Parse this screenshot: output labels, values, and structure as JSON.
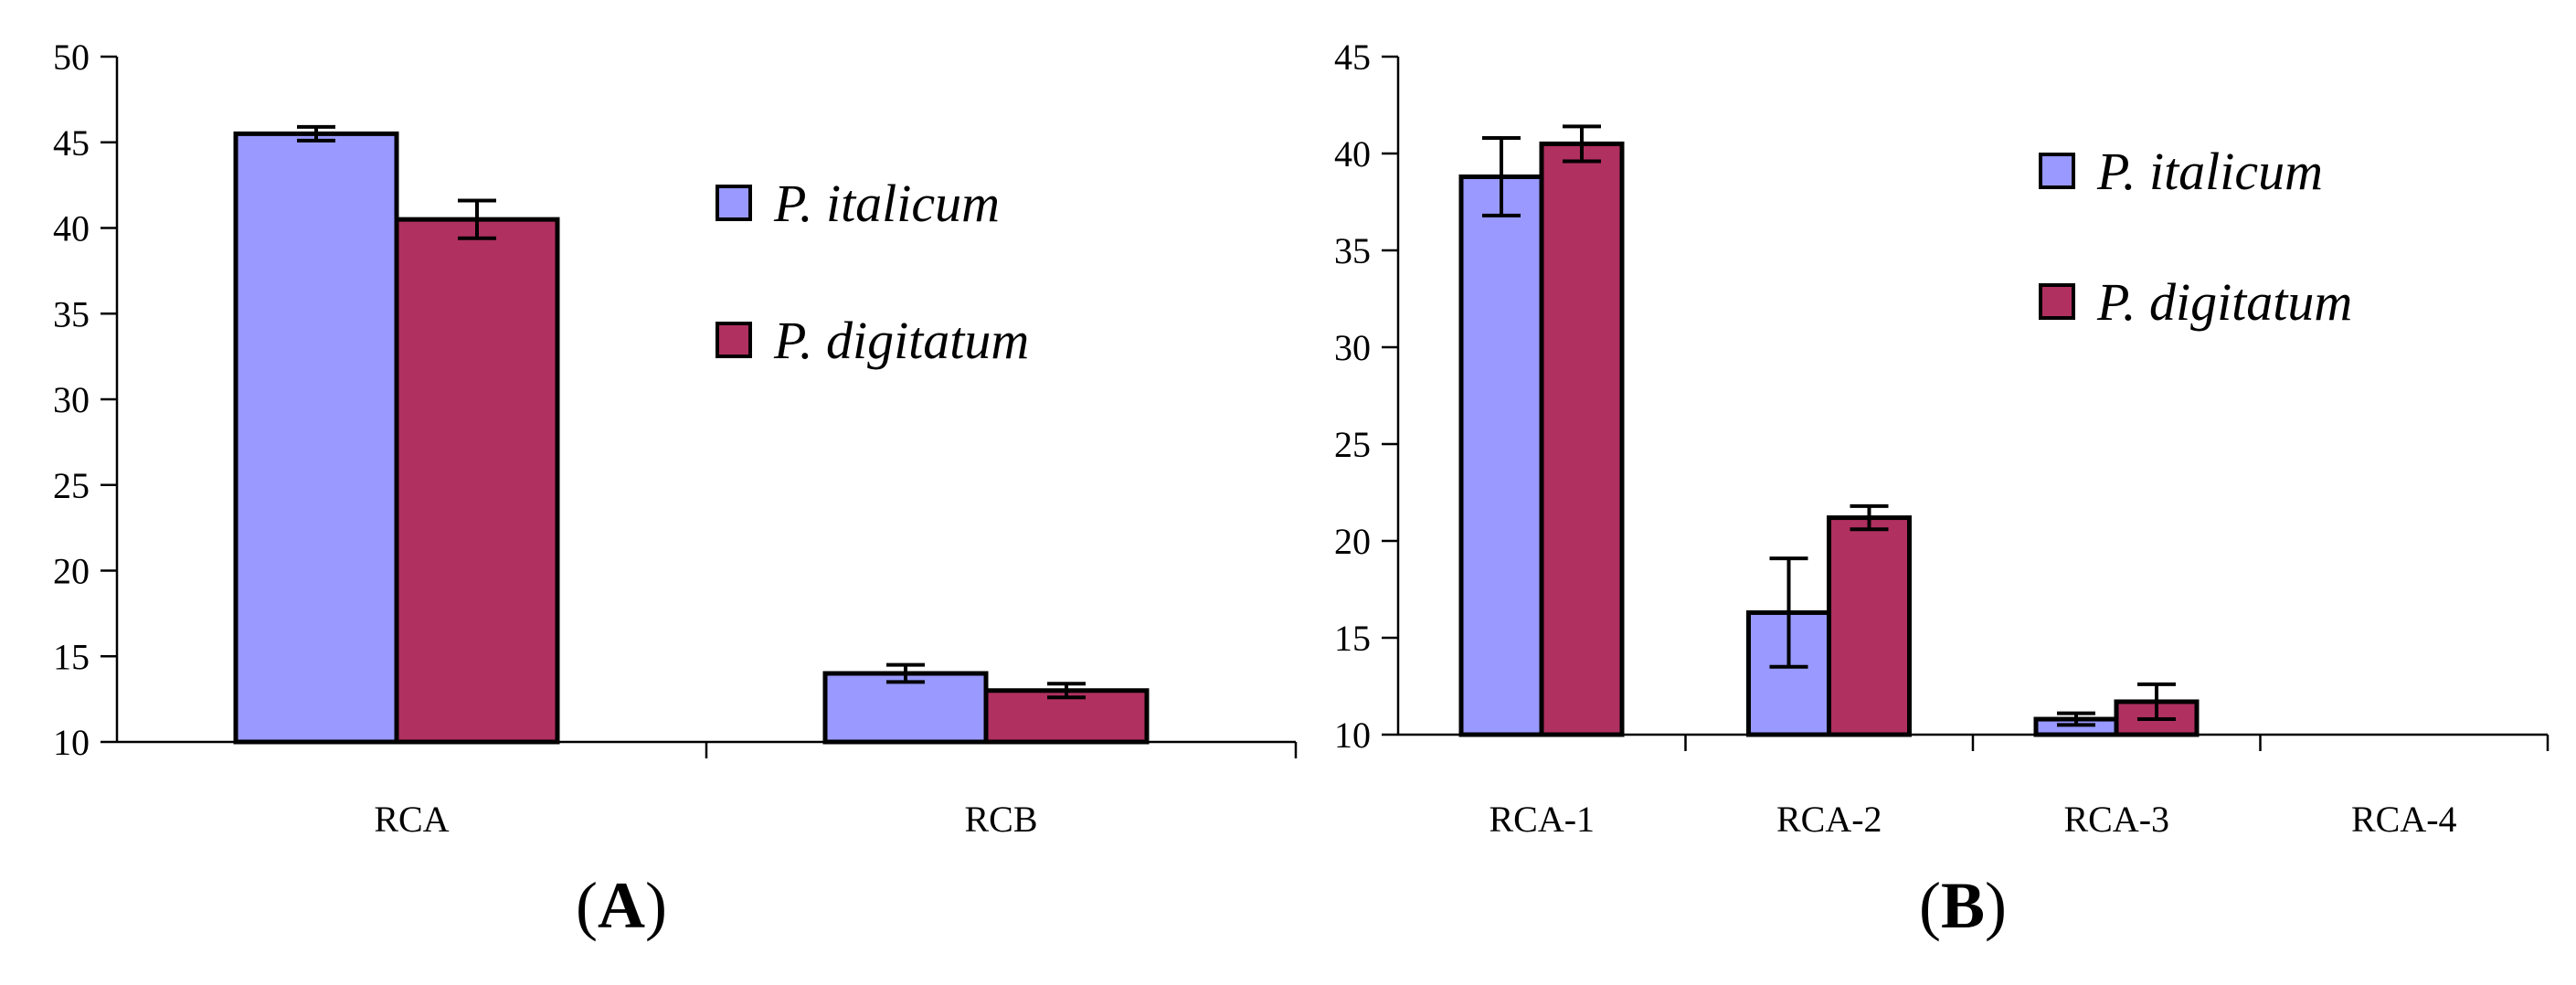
{
  "colors": {
    "series_1": "#9999ff",
    "series_2": "#b03060"
  },
  "chart_data": [
    {
      "type": "bar",
      "panel": "(A)",
      "panel_letter": "A",
      "categories": [
        "RCA",
        "RCB"
      ],
      "series": [
        {
          "name": "P. italicum",
          "values": [
            45.5,
            14.0
          ],
          "errors": [
            0.4,
            0.5
          ]
        },
        {
          "name": "P. digitatum",
          "values": [
            40.5,
            13.0
          ],
          "errors": [
            1.1,
            0.4
          ]
        }
      ],
      "ylim": [
        10,
        50
      ],
      "yticks": [
        10,
        15,
        20,
        25,
        30,
        35,
        40,
        45,
        50
      ],
      "xlabel": "",
      "ylabel": "",
      "legend": "upper-right",
      "grid": false
    },
    {
      "type": "bar",
      "panel": "(B)",
      "panel_letter": "B",
      "categories": [
        "RCA-1",
        "RCA-2",
        "RCA-3",
        "RCA-4"
      ],
      "series": [
        {
          "name": "P. italicum",
          "values": [
            38.8,
            16.3,
            10.8,
            null
          ],
          "errors": [
            2.0,
            2.8,
            0.3,
            null
          ]
        },
        {
          "name": "P. digitatum",
          "values": [
            40.5,
            21.2,
            11.7,
            null
          ],
          "errors": [
            0.9,
            0.6,
            0.9,
            null
          ]
        }
      ],
      "ylim": [
        10,
        45
      ],
      "yticks": [
        10,
        15,
        20,
        25,
        30,
        35,
        40,
        45
      ],
      "xlabel": "",
      "ylabel": "",
      "legend": "upper-right",
      "grid": false
    }
  ]
}
